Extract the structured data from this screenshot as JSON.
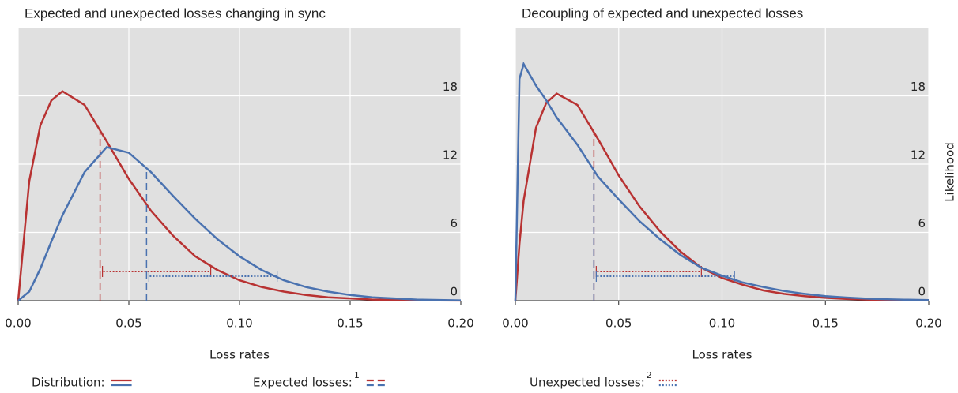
{
  "chart_data": [
    {
      "type": "line",
      "title": "Expected and unexpected losses changing in sync",
      "xlabel": "Loss rates",
      "x": [
        0,
        0.005,
        0.01,
        0.015,
        0.02,
        0.03,
        0.04,
        0.05,
        0.06,
        0.07,
        0.08,
        0.09,
        0.1,
        0.11,
        0.12,
        0.13,
        0.14,
        0.15,
        0.16,
        0.17,
        0.18,
        0.19,
        0.2
      ],
      "series": [
        {
          "color": "#b83232",
          "values": [
            0,
            10.5,
            15.4,
            17.6,
            18.4,
            17.2,
            14,
            10.7,
            7.9,
            5.7,
            3.9,
            2.7,
            1.8,
            1.2,
            0.8,
            0.5,
            0.3,
            0.2,
            0.1,
            0.07,
            0.04,
            0.02,
            0.01
          ],
          "expected": 0.037,
          "unexpected_to": 0.087
        },
        {
          "color": "#4a72b0",
          "values": [
            0,
            0.8,
            2.8,
            5.2,
            7.5,
            11.3,
            13.5,
            13,
            11.3,
            9.2,
            7.2,
            5.4,
            3.9,
            2.7,
            1.8,
            1.2,
            0.8,
            0.5,
            0.3,
            0.2,
            0.1,
            0.06,
            0.03
          ],
          "expected": 0.058,
          "unexpected_to": 0.117
        }
      ],
      "xlim": [
        0,
        0.2
      ],
      "ylim": [
        0,
        24
      ],
      "xticks": [
        {
          "value": 0,
          "label": "0.00"
        },
        {
          "value": 0.05,
          "label": "0.05"
        },
        {
          "value": 0.1,
          "label": "0.10"
        },
        {
          "value": 0.15,
          "label": "0.15"
        },
        {
          "value": 0.2,
          "label": "0.20"
        }
      ],
      "yticks": [
        0,
        6,
        12,
        18
      ],
      "grid": true
    },
    {
      "type": "line",
      "title": "Decoupling of expected and unexpected losses",
      "xlabel": "Loss rates",
      "ylabel": "Likelihood",
      "x": [
        0,
        0.002,
        0.004,
        0.01,
        0.015,
        0.02,
        0.03,
        0.04,
        0.05,
        0.06,
        0.07,
        0.08,
        0.09,
        0.1,
        0.11,
        0.12,
        0.13,
        0.14,
        0.15,
        0.16,
        0.17,
        0.18,
        0.19,
        0.2
      ],
      "series": [
        {
          "color": "#b83232",
          "values": [
            0,
            5,
            8.8,
            15.2,
            17.4,
            18.2,
            17.2,
            14.2,
            11,
            8.3,
            6.1,
            4.3,
            2.9,
            2,
            1.4,
            0.9,
            0.6,
            0.4,
            0.25,
            0.15,
            0.1,
            0.06,
            0.03,
            0.02
          ],
          "expected": 0.038,
          "unexpected_to": 0.09
        },
        {
          "color": "#4a72b0",
          "values": [
            0,
            19.5,
            20.8,
            18.9,
            17.6,
            16.1,
            13.7,
            10.9,
            8.9,
            7,
            5.4,
            4,
            2.9,
            2.2,
            1.6,
            1.2,
            0.85,
            0.6,
            0.4,
            0.28,
            0.18,
            0.12,
            0.08,
            0.05
          ],
          "expected": 0.038,
          "unexpected_to": 0.106
        }
      ],
      "xlim": [
        0,
        0.2
      ],
      "ylim": [
        0,
        24
      ],
      "xticks": [
        {
          "value": 0,
          "label": "0.00"
        },
        {
          "value": 0.05,
          "label": "0.05"
        },
        {
          "value": 0.1,
          "label": "0.10"
        },
        {
          "value": 0.15,
          "label": "0.15"
        },
        {
          "value": 0.2,
          "label": "0.20"
        }
      ],
      "yticks": [
        0,
        6,
        12,
        18
      ],
      "grid": true
    }
  ],
  "legend": [
    {
      "label": "Distribution:"
    },
    {
      "label": "Expected losses:",
      "note": "1"
    },
    {
      "label": "Unexpected losses:",
      "note": "2"
    }
  ]
}
